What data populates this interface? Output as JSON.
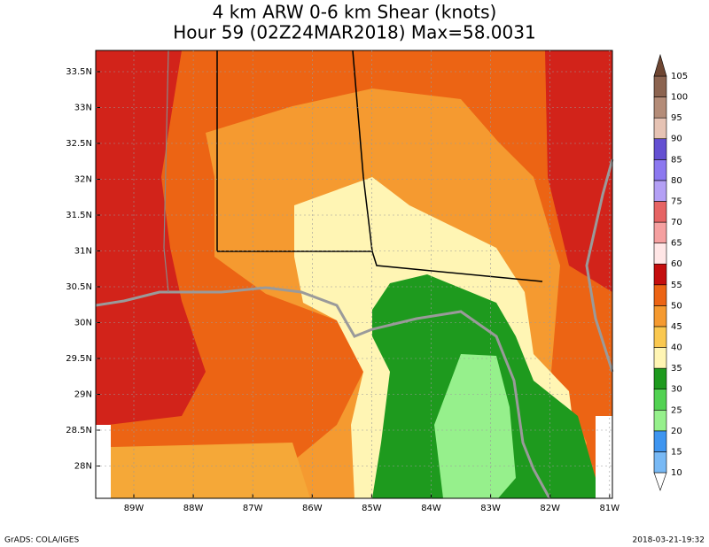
{
  "header": {
    "title": "4 km ARW 0-6 km Shear (knots)",
    "subtitle": "Hour 59 (02Z24MAR2018) Max=58.0031"
  },
  "map": {
    "lat_labels": [
      "33.5N",
      "33N",
      "32.5N",
      "32N",
      "31.5N",
      "31N",
      "30.5N",
      "30N",
      "29.5N",
      "29N",
      "28.5N",
      "28N"
    ],
    "lon_labels": [
      "89W",
      "88W",
      "87W",
      "86W",
      "85W",
      "84W",
      "83W",
      "82W",
      "81W"
    ]
  },
  "colorbar": {
    "levels": [
      10,
      15,
      20,
      25,
      30,
      35,
      40,
      45,
      50,
      55,
      60,
      65,
      70,
      75,
      80,
      85,
      90,
      95,
      100,
      105
    ],
    "colors": [
      "#ffffff",
      "#78b9f5",
      "#3e95f0",
      "#96f08c",
      "#52d252",
      "#1e9a1e",
      "#fff5b4",
      "#fac850",
      "#f59a30",
      "#ec6414",
      "#c40e0e",
      "#ffe6e6",
      "#f5a0a0",
      "#e66464",
      "#b4a0f5",
      "#8c78f0",
      "#6450d2",
      "#e6c3b4",
      "#b48c78",
      "#8c6450",
      "#6e4632"
    ]
  },
  "footer": {
    "left": "GrADS: COLA/IGES",
    "right": "2018-03-21-19:32"
  }
}
